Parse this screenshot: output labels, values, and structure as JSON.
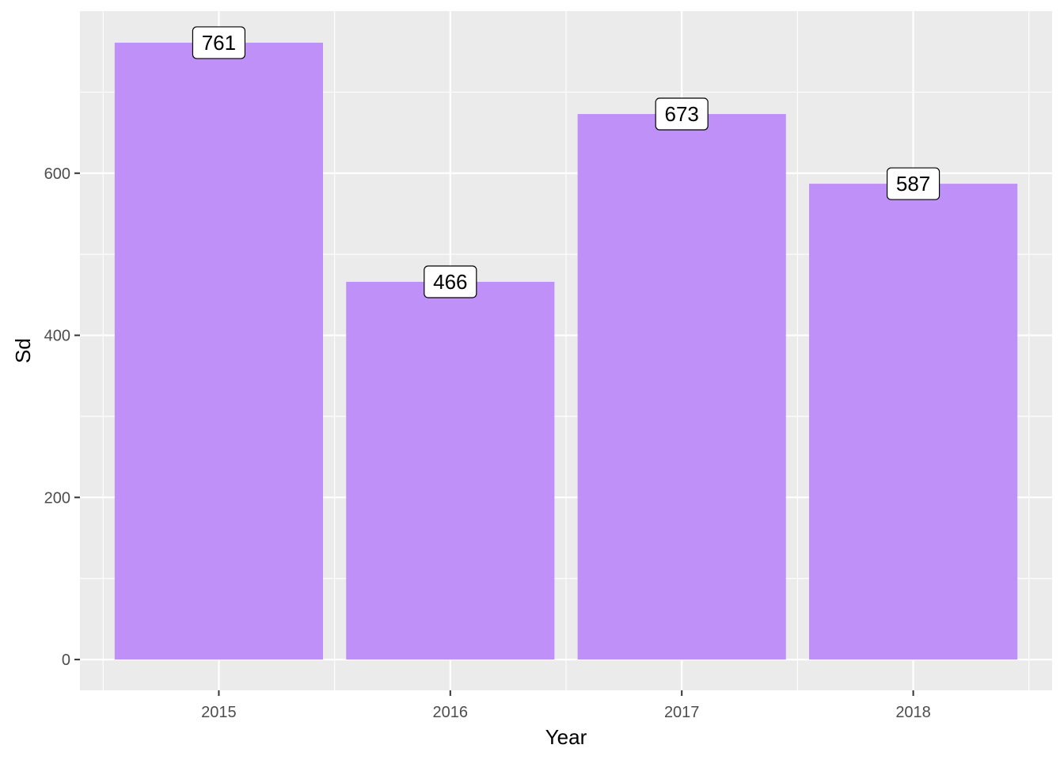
{
  "chart_data": {
    "type": "bar",
    "categories": [
      "2015",
      "2016",
      "2017",
      "2018"
    ],
    "values": [
      761,
      466,
      673,
      587
    ],
    "data_labels": [
      "761",
      "466",
      "673",
      "587"
    ],
    "title": "",
    "xlabel": "Year",
    "ylabel": "Sd",
    "ylim": [
      -38,
      800
    ],
    "yticks": [
      0,
      200,
      400,
      600
    ],
    "ytick_labels": [
      "0",
      "200",
      "400",
      "600"
    ],
    "grid": true,
    "legend": "none",
    "colors": {
      "bar": "#bf91f8",
      "panel_background": "#ebebeb",
      "grid": "#ffffff",
      "label_fill": "#ffffff",
      "label_border": "#000000"
    }
  }
}
